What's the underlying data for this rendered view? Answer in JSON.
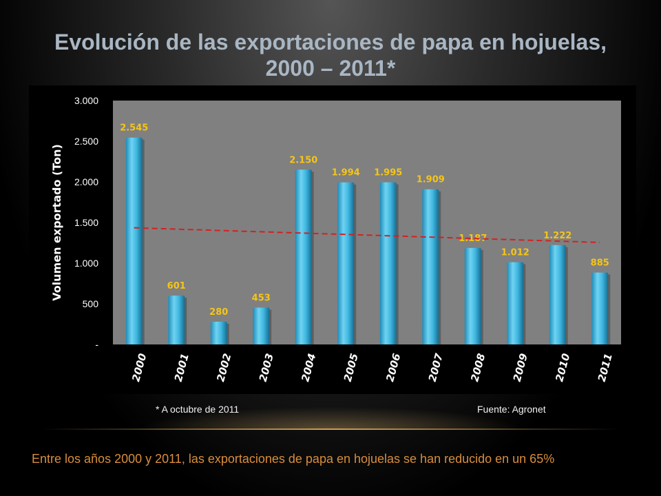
{
  "title": {
    "line1": "Evolución de las exportaciones de papa en hojuelas,",
    "line2": "2000 – 2011*"
  },
  "chart_data": {
    "type": "bar",
    "categories": [
      "2000",
      "2001",
      "2002",
      "2003",
      "2004",
      "2005",
      "2006",
      "2007",
      "2008",
      "2009",
      "2010",
      "2011"
    ],
    "values": [
      2545,
      601,
      280,
      453,
      2150,
      1994,
      1995,
      1909,
      1187,
      1012,
      1222,
      885
    ],
    "value_labels": [
      "2.545",
      "601",
      "280",
      "453",
      "2.150",
      "1.994",
      "1.995",
      "1.909",
      "1.187",
      "1.012",
      "1.222",
      "885"
    ],
    "ylabel": "Volumen exportado (Ton)",
    "ylim": [
      0,
      3000
    ],
    "yticks": [
      0,
      500,
      1000,
      1500,
      2000,
      2500,
      3000
    ],
    "ytick_labels": [
      "-",
      "500",
      "1.000",
      "1.500",
      "2.000",
      "2.500",
      "3.000"
    ],
    "grid": false,
    "trendline": {
      "type": "linear",
      "start": 1435,
      "end": 1255,
      "style": "dashed"
    },
    "colors": {
      "bar": "#3fb6e0",
      "bar_dark": "#1a7fa8",
      "value_label": "#f5c518",
      "trend": "#d42020",
      "plot_bg": "#808080"
    }
  },
  "footnotes": {
    "left": "* A octubre de 2011",
    "right": "Fuente: Agronet"
  },
  "summary": "Entre los años 2000 y 2011, las exportaciones de papa  en hojuelas se han reducido en un 65%"
}
